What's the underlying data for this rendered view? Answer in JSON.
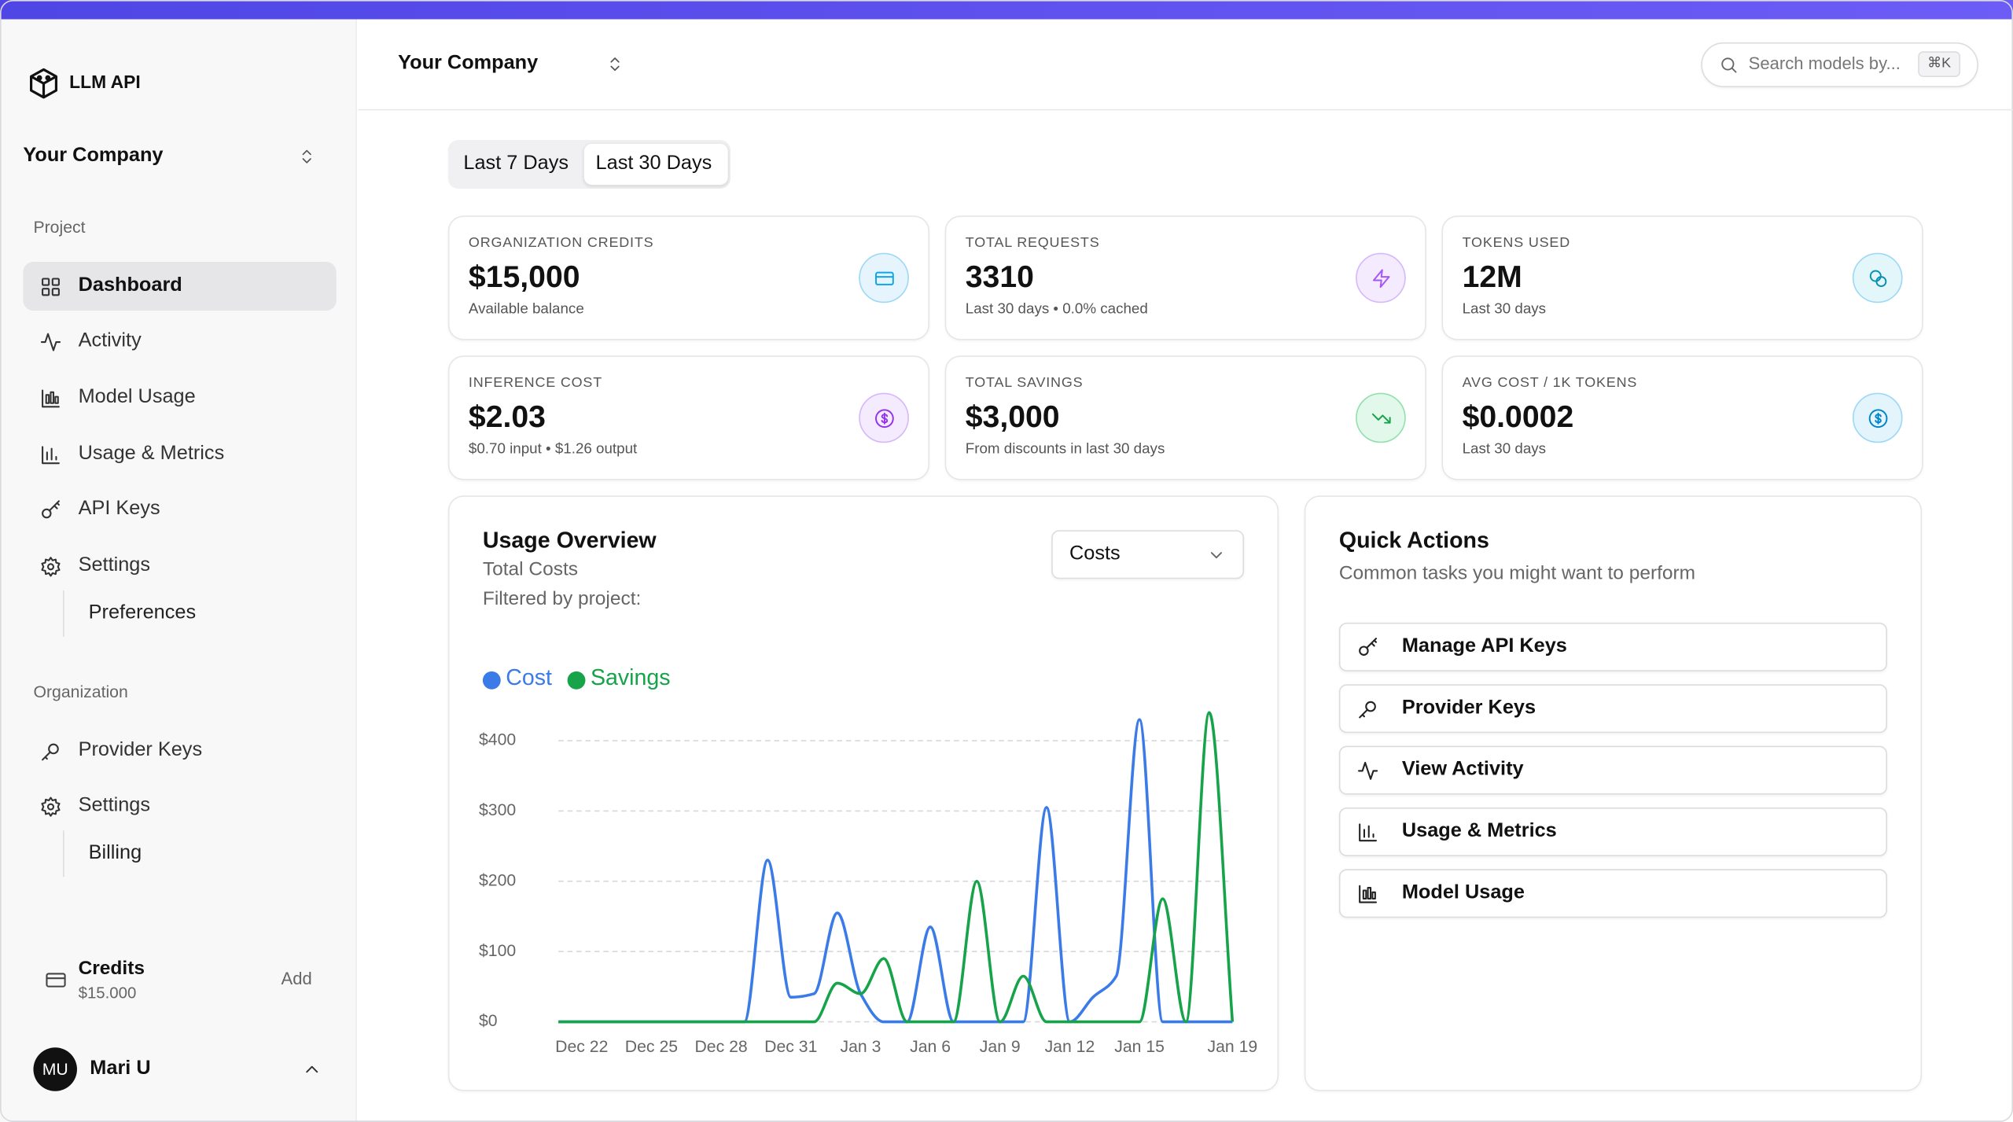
{
  "top_bar": {
    "company": "Your Company",
    "search_placeholder": "Search models by...",
    "shortcut": "⌘K"
  },
  "sidebar": {
    "brand": "LLM API",
    "company": "Your Company",
    "project_heading": "Project",
    "project_items": [
      "Dashboard",
      "Activity",
      "Model Usage",
      "Usage & Metrics",
      "API Keys",
      "Settings"
    ],
    "project_sub": "Preferences",
    "org_heading": "Organization",
    "org_items": [
      "Provider Keys",
      "Settings"
    ],
    "org_sub": "Billing",
    "credits_label": "Credits",
    "credits_amount": "$15.000",
    "credits_action": "Add",
    "user_initials": "MU",
    "user_name": "Mari U"
  },
  "range_tabs": [
    "Last 7 Days",
    "Last 30 Days"
  ],
  "stats": [
    {
      "label": "ORGANIZATION CREDITS",
      "value": "$15,000",
      "note": "Available balance"
    },
    {
      "label": "TOTAL REQUESTS",
      "value": "3310",
      "note": "Last 30 days • 0.0% cached"
    },
    {
      "label": "TOKENS USED",
      "value": "12M",
      "note": "Last 30 days"
    },
    {
      "label": "INFERENCE COST",
      "value": "$2.03",
      "note": "$0.70 input • $1.26 output"
    },
    {
      "label": "TOTAL SAVINGS",
      "value": "$3,000",
      "note": "From discounts in last 30 days"
    },
    {
      "label": "AVG COST / 1K TOKENS",
      "value": "$0.0002",
      "note": "Last 30 days"
    }
  ],
  "chart_data": {
    "type": "line",
    "title": "Usage Overview",
    "subtitle": "Total Costs",
    "filter_note": "Filtered by project:",
    "selector": "Costs",
    "categories": [
      null,
      "Dec 22",
      null,
      null,
      "Dec 25",
      null,
      null,
      "Dec 28",
      null,
      null,
      "Dec 31",
      null,
      null,
      "Jan 3",
      null,
      null,
      "Jan 6",
      null,
      null,
      "Jan 9",
      null,
      null,
      "Jan 12",
      null,
      null,
      "Jan 15",
      null,
      null,
      null,
      "Jan 19"
    ],
    "series": [
      {
        "name": "Cost",
        "color": "#3b7be8",
        "values": [
          0,
          0,
          0,
          0,
          0,
          0,
          0,
          0,
          0,
          230,
          35,
          40,
          155,
          40,
          0,
          0,
          135,
          0,
          0,
          0,
          0,
          305,
          0,
          35,
          65,
          430,
          0,
          0,
          0,
          0
        ]
      },
      {
        "name": "Savings",
        "color": "#16a34a",
        "values": [
          0,
          0,
          0,
          0,
          0,
          0,
          0,
          0,
          0,
          0,
          0,
          0,
          55,
          40,
          90,
          0,
          0,
          0,
          200,
          0,
          65,
          0,
          0,
          0,
          0,
          0,
          175,
          0,
          440,
          0
        ]
      }
    ],
    "ylim": [
      0,
      450
    ],
    "yticks": [
      {
        "value": 0,
        "label": "$0"
      },
      {
        "value": 100,
        "label": "$100"
      },
      {
        "value": 200,
        "label": "$200"
      },
      {
        "value": 300,
        "label": "$300"
      },
      {
        "value": 400,
        "label": "$400"
      }
    ],
    "grid": true
  },
  "quick_actions": {
    "title": "Quick Actions",
    "subtitle": "Common tasks you might want to perform",
    "items": [
      "Manage API Keys",
      "Provider Keys",
      "View Activity",
      "Usage & Metrics",
      "Model Usage"
    ]
  }
}
